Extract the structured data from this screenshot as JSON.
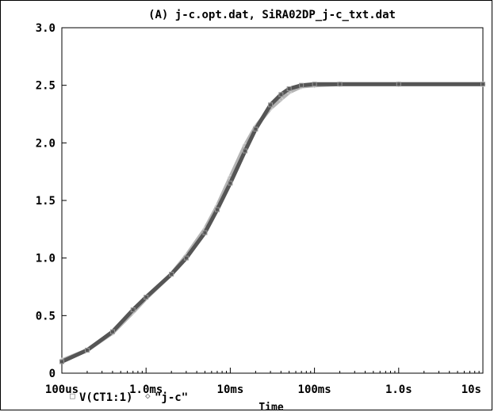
{
  "chart_data": {
    "type": "line",
    "title": "(A) j-c.opt.dat, SiRA02DP_j-c_txt.dat",
    "xlabel": "Time",
    "x_scale": "log",
    "xlim": [
      "100us",
      "10s"
    ],
    "ylim": [
      0,
      3.0
    ],
    "x_ticks": [
      "100us",
      "1.0ms",
      "10ms",
      "100ms",
      "1.0s",
      "10s"
    ],
    "y_ticks": [
      "0",
      "0.5",
      "1.0",
      "1.5",
      "2.0",
      "2.5",
      "3.0"
    ],
    "grid": false,
    "series": [
      {
        "name": "V(CT1:1)",
        "color": "#555555",
        "marker": "square",
        "x": [
          "100us",
          "200us",
          "400us",
          "700us",
          "1ms",
          "2ms",
          "3ms",
          "5ms",
          "7ms",
          "10ms",
          "15ms",
          "20ms",
          "30ms",
          "40ms",
          "50ms",
          "70ms",
          "100ms",
          "200ms",
          "1s",
          "10s"
        ],
        "y": [
          0.1,
          0.2,
          0.36,
          0.55,
          0.66,
          0.86,
          1.0,
          1.22,
          1.42,
          1.65,
          1.93,
          2.12,
          2.33,
          2.42,
          2.47,
          2.5,
          2.51,
          2.51,
          2.51,
          2.51
        ]
      },
      {
        "name": "\"j-c\"",
        "color": "#b5b5b5",
        "marker": "diamond",
        "x": [
          "100us",
          "200us",
          "400us",
          "700us",
          "1ms",
          "2ms",
          "3ms",
          "5ms",
          "7ms",
          "10ms",
          "15ms",
          "20ms",
          "30ms",
          "40ms",
          "50ms",
          "70ms",
          "100ms",
          "200ms",
          "1s",
          "10s"
        ],
        "y": [
          0.11,
          0.2,
          0.35,
          0.53,
          0.65,
          0.86,
          1.02,
          1.25,
          1.45,
          1.7,
          1.98,
          2.14,
          2.3,
          2.38,
          2.44,
          2.49,
          2.5,
          2.51,
          2.51,
          2.51
        ]
      }
    ],
    "legend": {
      "entries": [
        {
          "marker": "□",
          "label": "V(CT1:1)"
        },
        {
          "marker": "◇",
          "label": "\"j-c\""
        }
      ]
    }
  }
}
